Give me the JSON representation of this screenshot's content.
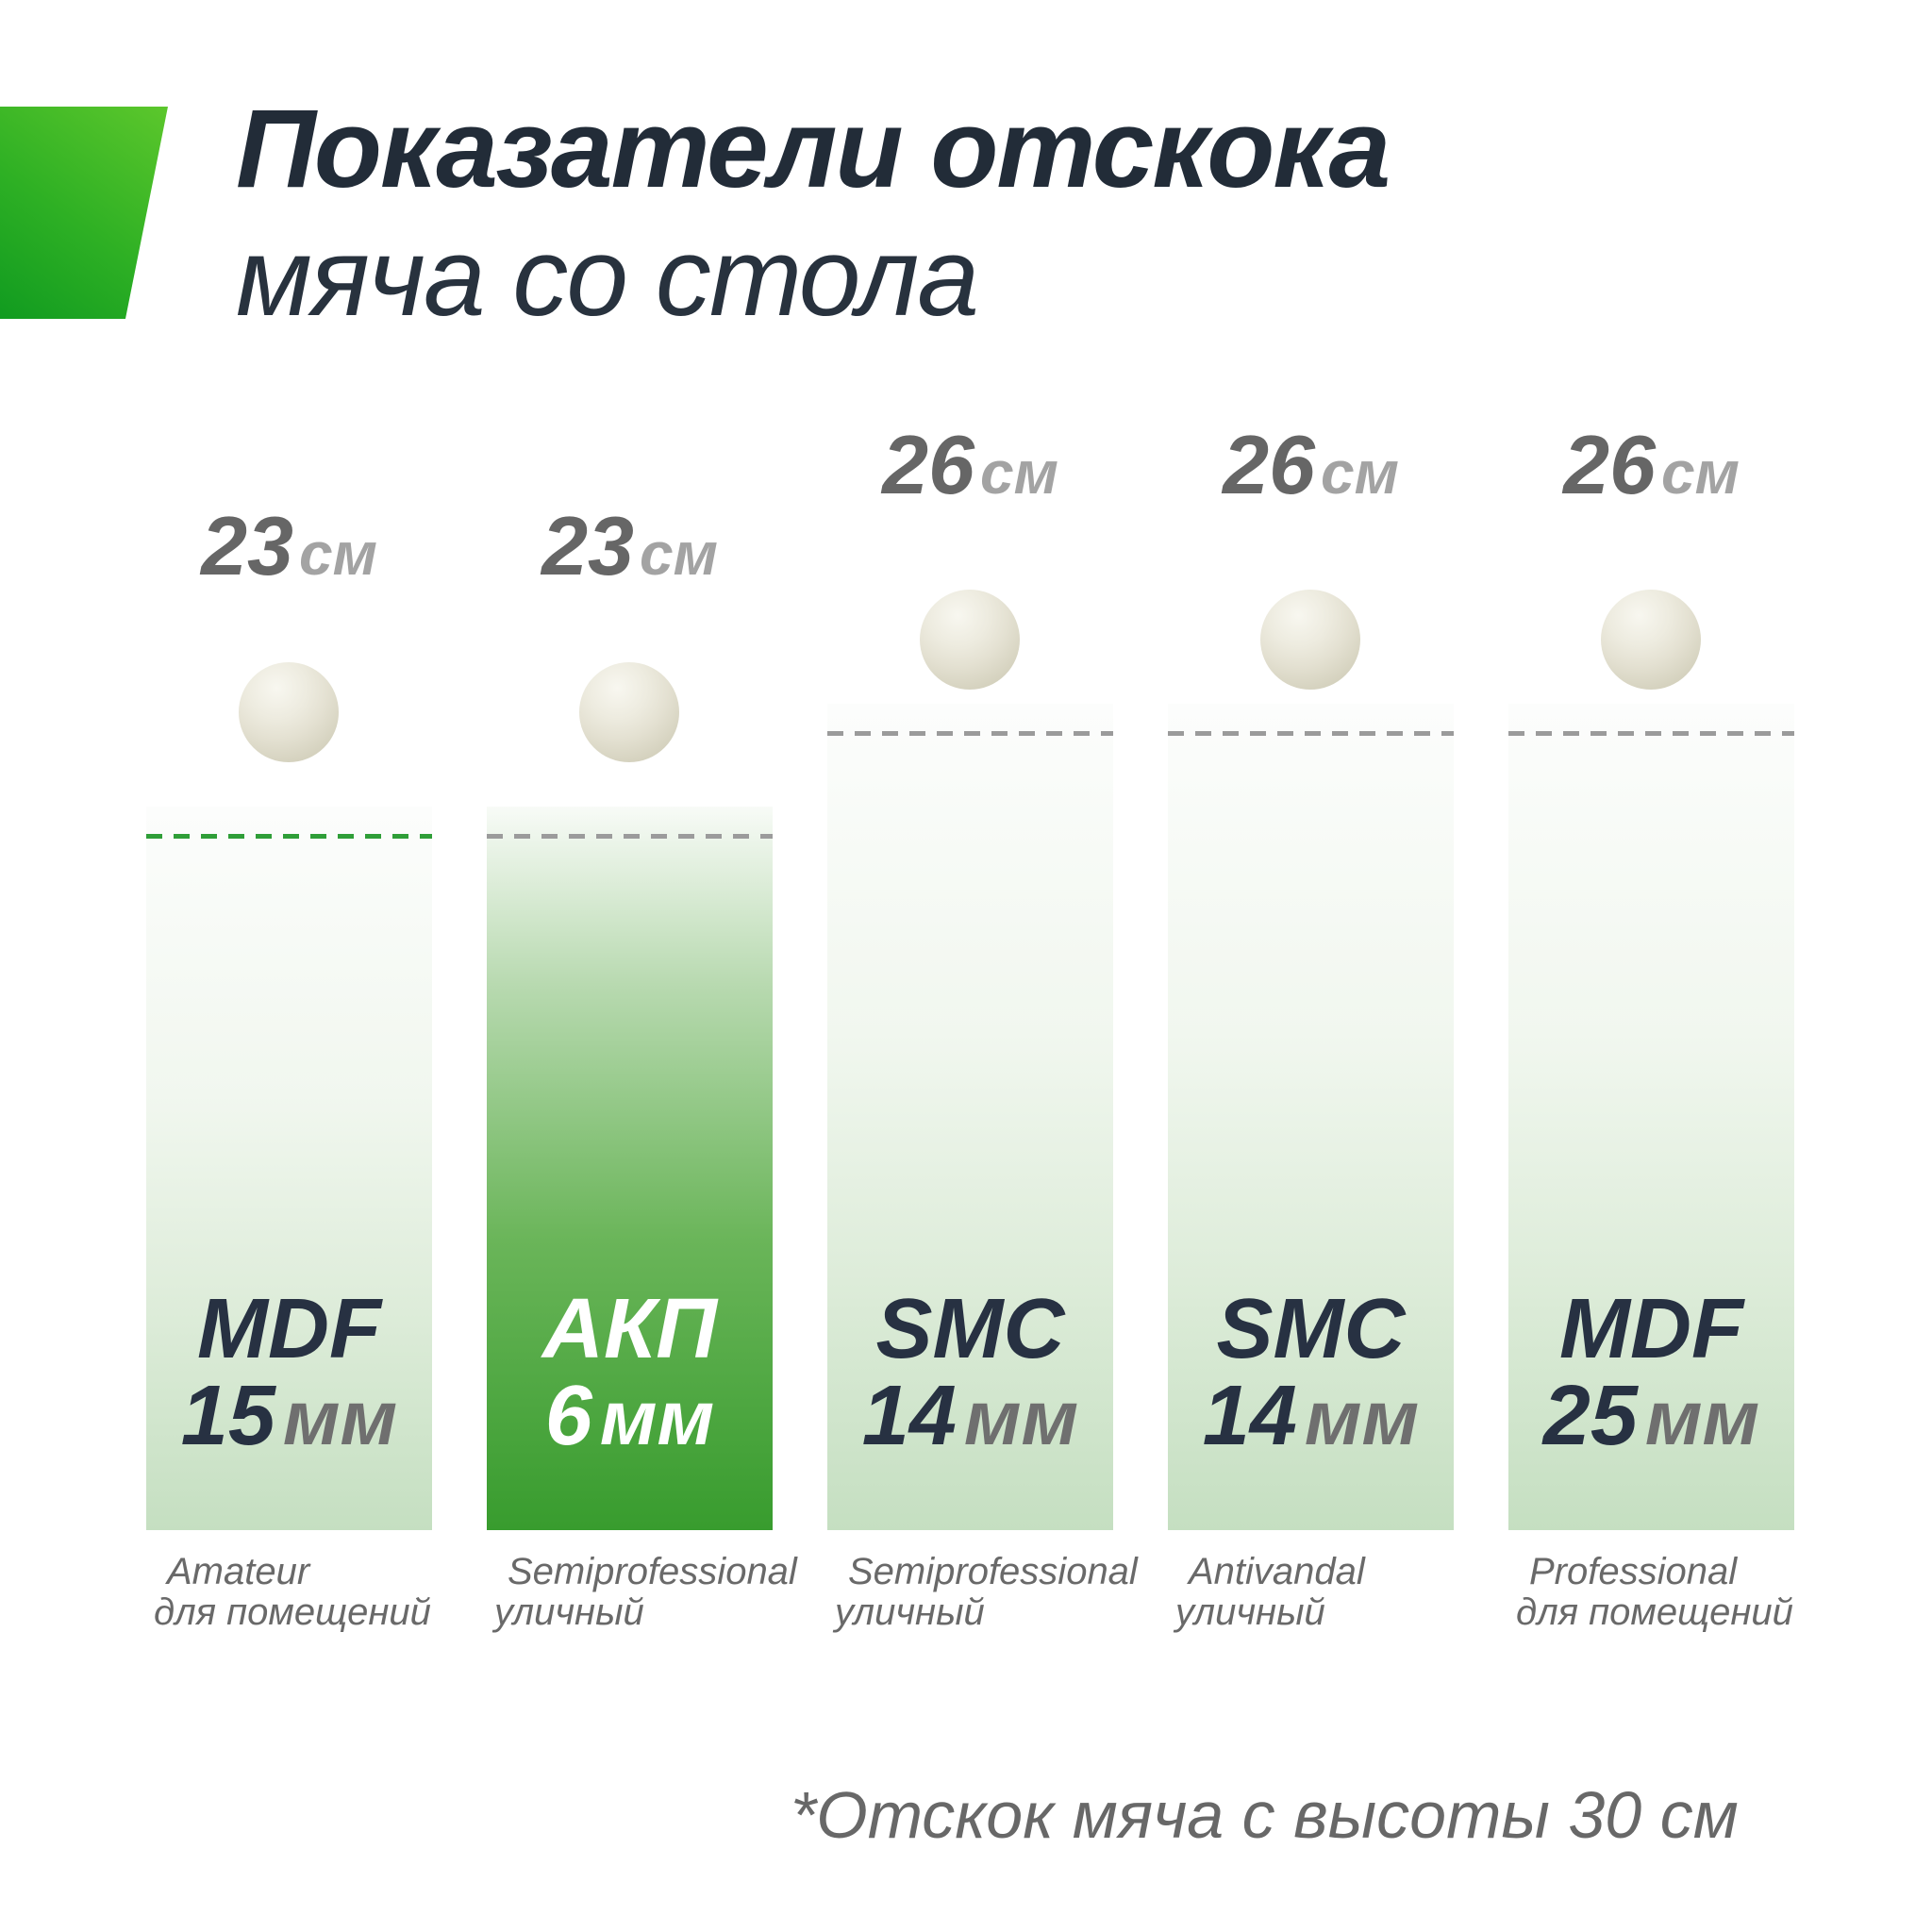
{
  "title": {
    "line1": "Показатели отскока",
    "line2": "мяча со стола"
  },
  "note": "*Отскок мяча с высоты 30 см",
  "columns": [
    {
      "value": "23",
      "unit": "см",
      "material": "MDF",
      "thickness_value": "15",
      "thickness_unit": "мм",
      "caption1": "Amateur",
      "caption2": "для помещений"
    },
    {
      "value": "23",
      "unit": "см",
      "material": "АКП",
      "thickness_value": "6",
      "thickness_unit": "мм",
      "caption1": "Semiprofessional",
      "caption2": "уличный"
    },
    {
      "value": "26",
      "unit": "см",
      "material": "SMC",
      "thickness_value": "14",
      "thickness_unit": "мм",
      "caption1": "Semiprofessional",
      "caption2": "уличный"
    },
    {
      "value": "26",
      "unit": "см",
      "material": "SMC",
      "thickness_value": "14",
      "thickness_unit": "мм",
      "caption1": "Antivandal",
      "caption2": "уличный"
    },
    {
      "value": "26",
      "unit": "см",
      "material": "MDF",
      "thickness_value": "25",
      "thickness_unit": "мм",
      "caption1": "Professional",
      "caption2": "для помещений"
    }
  ],
  "colors": {
    "accent_green_light": "#5cc72c",
    "accent_green_dark": "#119b20",
    "highlight_bar_bottom": "#389c2e",
    "light_bar_bottom": "#c5dfc1",
    "green_dash": "#2f9e38",
    "gray_dash": "#9b9b9b",
    "title_text": "#222c38",
    "value_number": "#666666",
    "value_unit": "#a3a3a3",
    "caption_gray": "#696969"
  },
  "chart_data": {
    "type": "bar",
    "title": "Показатели отскока мяча со стола",
    "categories": [
      "MDF 15 мм",
      "АКП 6 мм",
      "SMC 14 мм",
      "SMC 14 мм",
      "MDF 25 мм"
    ],
    "values": [
      23,
      23,
      26,
      26,
      26
    ],
    "unit": "см",
    "value_labels": [
      "23 см",
      "23 см",
      "26 см",
      "26 см",
      "26 см"
    ],
    "bar_captions": [
      "Amateur для помещений",
      "Semiprofessional уличный",
      "Semiprofessional уличный",
      "Antivandal уличный",
      "Professional для помещений"
    ],
    "highlighted_bar_index": 1,
    "footnote": "*Отскок мяча с высоты 30 см",
    "xlabel": "",
    "ylabel": "",
    "legend": "none",
    "grid": false
  }
}
